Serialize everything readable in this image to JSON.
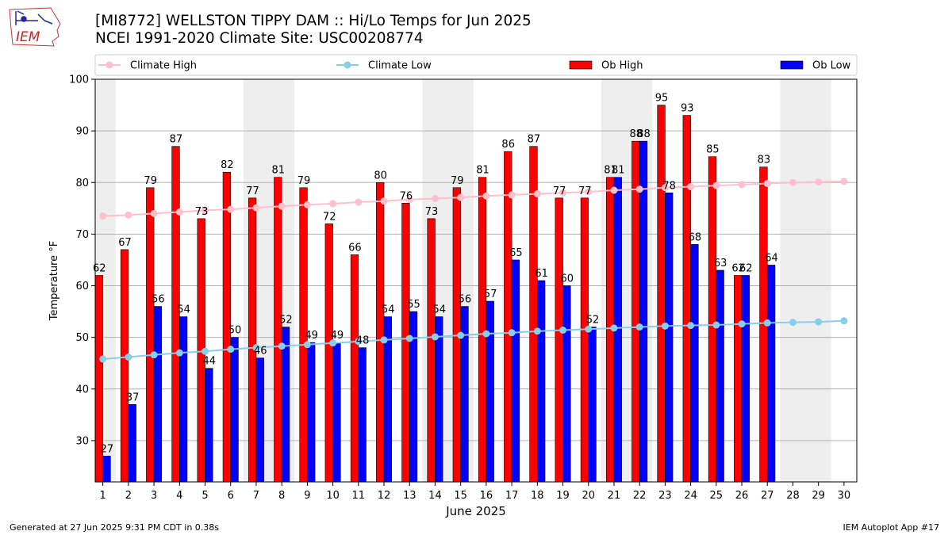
{
  "header": {
    "title_line1": "[MI8772] WELLSTON TIPPY DAM :: Hi/Lo Temps for Jun 2025",
    "title_line2": "NCEI 1991-2020 Climate Site: USC00208774"
  },
  "logo": {
    "text": "IEM",
    "icon": "iem-logo-iowa-map"
  },
  "footer": {
    "left": "Generated at 27 Jun 2025 9:31 PM CDT in 0.38s",
    "right": "IEM Autoplot App #17"
  },
  "colors": {
    "ob_high": "#ff0000",
    "ob_low": "#0000ff",
    "climate_high": "#ffc0cb",
    "climate_low": "#87ceeb",
    "weekend_shade": "#eeeeee",
    "grid": "#b0b0b0"
  },
  "chart_data": {
    "type": "bar",
    "xlabel": "June 2025",
    "ylabel": "Temperature °F",
    "ylim": [
      22,
      100
    ],
    "yticks": [
      30,
      40,
      50,
      60,
      70,
      80,
      90,
      100
    ],
    "grid": "horizontal",
    "legend_position": "top",
    "days": [
      1,
      2,
      3,
      4,
      5,
      6,
      7,
      8,
      9,
      10,
      11,
      12,
      13,
      14,
      15,
      16,
      17,
      18,
      19,
      20,
      21,
      22,
      23,
      24,
      25,
      26,
      27,
      28,
      29,
      30
    ],
    "weekend_spans": [
      [
        1,
        1
      ],
      [
        7,
        8
      ],
      [
        14,
        15
      ],
      [
        21,
        22
      ],
      [
        28,
        29
      ]
    ],
    "series": [
      {
        "name": "Climate High",
        "type": "line",
        "values": [
          73.5,
          73.7,
          74.0,
          74.3,
          74.6,
          74.8,
          75.1,
          75.4,
          75.7,
          75.9,
          76.2,
          76.4,
          76.7,
          76.9,
          77.1,
          77.4,
          77.6,
          77.8,
          78.0,
          78.2,
          78.5,
          78.7,
          79.0,
          79.2,
          79.4,
          79.6,
          79.8,
          80.0,
          80.1,
          80.2
        ]
      },
      {
        "name": "Climate Low",
        "type": "line",
        "values": [
          45.8,
          46.2,
          46.6,
          47.0,
          47.3,
          47.7,
          48.0,
          48.3,
          48.6,
          48.9,
          49.2,
          49.5,
          49.8,
          50.1,
          50.4,
          50.7,
          50.9,
          51.2,
          51.4,
          51.6,
          51.8,
          52.0,
          52.2,
          52.3,
          52.4,
          52.6,
          52.8,
          52.9,
          53.0,
          53.2
        ]
      },
      {
        "name": "Ob High",
        "type": "bar",
        "values": [
          62,
          67,
          79,
          87,
          73,
          82,
          77,
          81,
          79,
          72,
          66,
          80,
          76,
          73,
          79,
          81,
          86,
          87,
          77,
          77,
          81,
          88,
          95,
          93,
          85,
          62,
          83,
          null,
          null,
          null
        ]
      },
      {
        "name": "Ob Low",
        "type": "bar",
        "values": [
          27,
          37,
          56,
          54,
          44,
          50,
          46,
          52,
          49,
          49,
          48,
          54,
          55,
          54,
          56,
          57,
          65,
          61,
          60,
          52,
          81,
          88,
          78,
          68,
          63,
          62,
          64,
          null,
          null,
          null
        ]
      }
    ]
  }
}
